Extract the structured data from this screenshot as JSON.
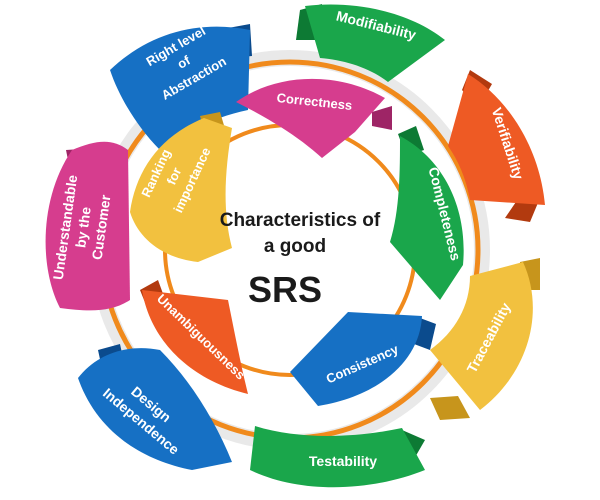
{
  "center": {
    "line1": "Characteristics of",
    "line2": "a good",
    "line3": "SRS"
  },
  "outer_items": {
    "modifiability": "Modifiability",
    "verifiability": "Verifiability",
    "traceability": "Traceability",
    "testability": "Testability",
    "design_independence": [
      "Design",
      "Independence"
    ],
    "understandable": [
      "Understandable",
      "by the",
      "Customer"
    ],
    "right_level": [
      "Right level",
      "of",
      "Abstraction"
    ]
  },
  "inner_items": {
    "correctness": "Correctness",
    "completeness": "Completeness",
    "consistency": "Consistency",
    "unambiguousness": "Unambiguousness",
    "ranking": [
      "Ranking",
      "for",
      "importance"
    ]
  },
  "colors": {
    "green": "#1aa64b",
    "green_dark": "#0d7a34",
    "orange": "#ee5a24",
    "orange_dark": "#b23a0f",
    "yellow": "#f2c13f",
    "yellow_dark": "#c7951c",
    "blue": "#1670c4",
    "blue_dark": "#0b4b8d",
    "pink": "#d63d8e",
    "pink_dark": "#9e2566",
    "ring": "#f08a1c"
  }
}
